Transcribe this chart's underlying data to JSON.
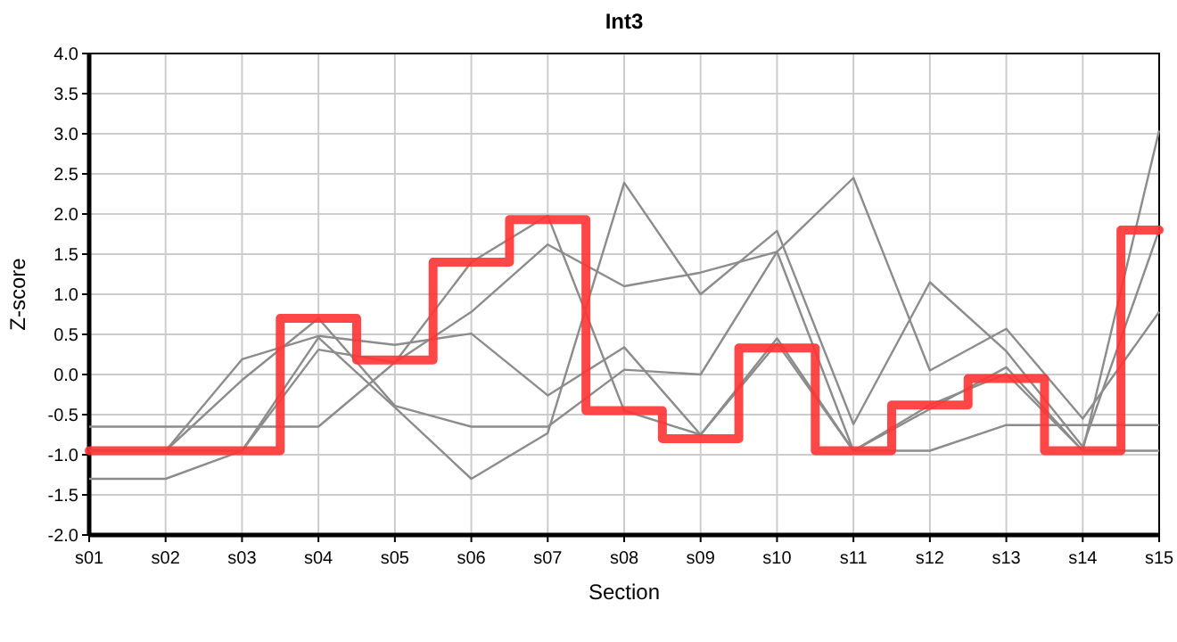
{
  "chart_data": {
    "type": "line",
    "title": "Int3",
    "xlabel": "Section",
    "ylabel": "Z-score",
    "categories": [
      "s01",
      "s02",
      "s03",
      "s04",
      "s05",
      "s06",
      "s07",
      "s08",
      "s09",
      "s10",
      "s11",
      "s12",
      "s13",
      "s14",
      "s15"
    ],
    "ylim": [
      -2,
      4
    ],
    "yticks": [
      {
        "value": -2,
        "label": "-2.0"
      },
      {
        "value": -1.5,
        "label": "-1.5"
      },
      {
        "value": -1,
        "label": "-1.0"
      },
      {
        "value": -0.5,
        "label": "-0.5"
      },
      {
        "value": 0,
        "label": "0.0"
      },
      {
        "value": 0.5,
        "label": "0.5"
      },
      {
        "value": 1,
        "label": "1.0"
      },
      {
        "value": 1.5,
        "label": "1.5"
      },
      {
        "value": 2,
        "label": "2.0"
      },
      {
        "value": 2.5,
        "label": "2.5"
      },
      {
        "value": 3,
        "label": "3.0"
      },
      {
        "value": 3.5,
        "label": "3.5"
      },
      {
        "value": 4,
        "label": "4.0"
      }
    ],
    "grid": true,
    "series": [
      {
        "color": "#8c8c8c",
        "values": [
          -0.65,
          -0.65,
          -0.65,
          -0.65,
          0.15,
          0.78,
          1.62,
          1.1,
          1.27,
          1.53,
          2.45,
          0.05,
          0.57,
          -0.55,
          0.78
        ]
      },
      {
        "color": "#8c8c8c",
        "values": [
          -0.95,
          -0.95,
          0.19,
          0.48,
          0.37,
          0.51,
          -0.26,
          0.34,
          -0.75,
          0.45,
          -0.95,
          -0.43,
          0.09,
          -0.95,
          3.04
        ]
      },
      {
        "color": "#8c8c8c",
        "values": [
          -0.95,
          -0.95,
          -0.07,
          0.7,
          -0.39,
          -0.65,
          -0.65,
          0.06,
          0,
          1.53,
          -0.95,
          -0.95,
          -0.63,
          -0.63,
          -0.63
        ]
      },
      {
        "color": "#8c8c8c",
        "values": [
          -1.3,
          -1.3,
          -0.95,
          0.46,
          -0.41,
          -1.3,
          -0.73,
          2.39,
          1,
          1.79,
          -0.62,
          1.15,
          0.29,
          -0.9,
          1.8
        ]
      },
      {
        "color": "#8c8c8c",
        "values": [
          -0.95,
          -0.95,
          -0.95,
          0.31,
          0.15,
          1.4,
          1.98,
          -0.45,
          -0.75,
          0.39,
          -0.95,
          -0.38,
          0.01,
          -0.95,
          -0.95
        ]
      },
      {
        "type": "step",
        "color": "#ff3333",
        "values": [
          -0.95,
          -0.95,
          -0.95,
          0.7,
          0.18,
          1.4,
          1.93,
          -0.45,
          -0.8,
          0.33,
          -0.95,
          -0.38,
          -0.05,
          -0.95,
          1.8
        ]
      }
    ]
  }
}
